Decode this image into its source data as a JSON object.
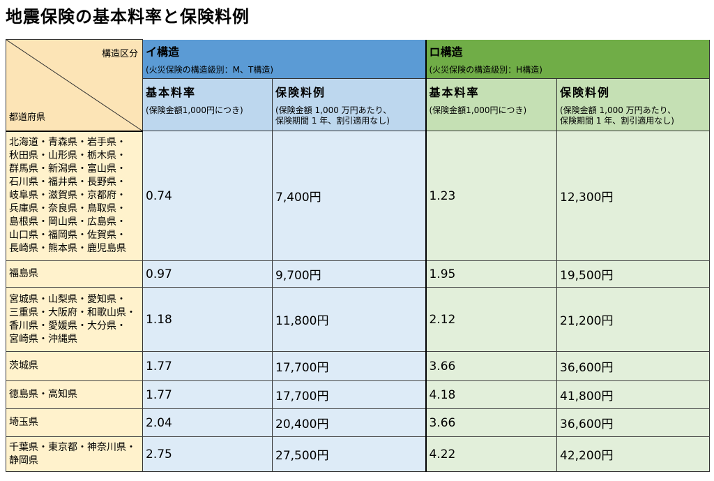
{
  "title": "地震保険の基本料率と保険料例",
  "header": {
    "corner_top": "構造区分",
    "corner_bottom": "都道府県",
    "group_a": {
      "name": "イ構造",
      "sub": "(火災保険の構造級別：M、T構造)"
    },
    "group_b": {
      "name": "ロ構造",
      "sub": "(火災保険の構造級別：H構造)"
    },
    "rate_label": "基本料率",
    "rate_note": "(保険金額1,000円につき)",
    "premium_label": "保険料例",
    "premium_note_1": "(保険金額 1,000 万円あたり、",
    "premium_note_2": "保険期間 1 年、割引適用なし)"
  },
  "rows": [
    {
      "prefs": [
        "北海道・青森県・岩手県・",
        "秋田県・山形県・栃木県・",
        "群馬県・新潟県・富山県・",
        "石川県・福井県・長野県・",
        "岐阜県・滋賀県・京都府・",
        "兵庫県・奈良県・鳥取県・",
        "島根県・岡山県・広島県・",
        "山口県・福岡県・佐賀県・",
        "長崎県・熊本県・鹿児島県"
      ],
      "a_rate": "0.74",
      "a_premium": "7,400円",
      "b_rate": "1.23",
      "b_premium": "12,300円"
    },
    {
      "prefs": [
        "福島県"
      ],
      "a_rate": "0.97",
      "a_premium": "9,700円",
      "b_rate": "1.95",
      "b_premium": "19,500円"
    },
    {
      "prefs": [
        "宮城県・山梨県・愛知県・",
        "三重県・大阪府・和歌山県・",
        "香川県・愛媛県・大分県・",
        "宮崎県・沖縄県"
      ],
      "a_rate": "1.18",
      "a_premium": "11,800円",
      "b_rate": "2.12",
      "b_premium": "21,200円"
    },
    {
      "prefs": [
        "茨城県"
      ],
      "a_rate": "1.77",
      "a_premium": "17,700円",
      "b_rate": "3.66",
      "b_premium": "36,600円"
    },
    {
      "prefs": [
        "徳島県・高知県"
      ],
      "a_rate": "1.77",
      "a_premium": "17,700円",
      "b_rate": "4.18",
      "b_premium": "41,800円"
    },
    {
      "prefs": [
        "埼玉県"
      ],
      "a_rate": "2.04",
      "a_premium": "20,400円",
      "b_rate": "3.66",
      "b_premium": "36,600円"
    },
    {
      "prefs": [
        "千葉県・東京都・神奈川県・",
        "静岡県"
      ],
      "a_rate": "2.75",
      "a_premium": "27,500円",
      "b_rate": "4.22",
      "b_premium": "42,200円"
    }
  ],
  "colors": {
    "group_a": "#5b9bd5",
    "group_b": "#70ad47",
    "sub_a": "#bdd7ee",
    "sub_b": "#c5e0b4",
    "cell_a": "#ddebf7",
    "cell_b": "#e2efda",
    "pref": "#fff2cc"
  }
}
